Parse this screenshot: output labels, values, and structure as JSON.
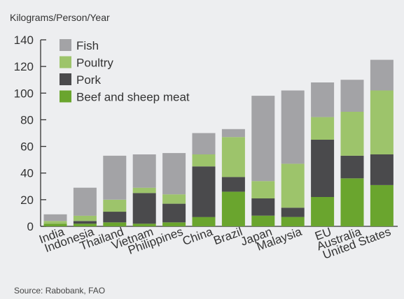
{
  "chart_data": {
    "type": "bar",
    "stacked": true,
    "ylabel": "Kilograms/Person/Year",
    "source": "Source: Rabobank, FAO",
    "ylim": [
      0,
      140
    ],
    "yticks": [
      0,
      20,
      40,
      60,
      80,
      100,
      120,
      140
    ],
    "grid": false,
    "legend_position": "top-left",
    "categories": [
      "India",
      "Indonesia",
      "Thailand",
      "Vietnam",
      "Philippines",
      "China",
      "Brazil",
      "Japan",
      "Malaysia",
      "EU",
      "Australia",
      "United States"
    ],
    "series": [
      {
        "name": "Beef and sheep meat",
        "color": "#6aa52e",
        "values": [
          2,
          2,
          3,
          2,
          3,
          7,
          26,
          8,
          7,
          22,
          36,
          31
        ]
      },
      {
        "name": "Pork",
        "color": "#4a4a4c",
        "values": [
          0,
          2,
          8,
          23,
          14,
          38,
          11,
          13,
          7,
          43,
          17,
          23
        ]
      },
      {
        "name": "Poultry",
        "color": "#9dc46b",
        "values": [
          2,
          4,
          9,
          4,
          7,
          9,
          30,
          13,
          33,
          17,
          33,
          48
        ]
      },
      {
        "name": "Fish",
        "color": "#a3a3a6",
        "values": [
          5,
          21,
          33,
          25,
          31,
          16,
          6,
          64,
          55,
          26,
          24,
          23
        ]
      }
    ]
  }
}
